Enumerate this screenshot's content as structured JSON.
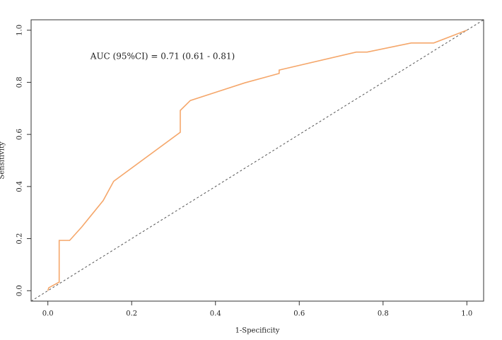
{
  "chart_data": {
    "type": "line",
    "xlabel": "1-Specificity",
    "ylabel": "Sensitivity",
    "annotation": "AUC (95%CI) = 0.71 (0.61 - 0.81)",
    "x": [
      0,
      0.002,
      0.027,
      0.027,
      0.052,
      0.081,
      0.132,
      0.157,
      0.316,
      0.316,
      0.34,
      0.47,
      0.552,
      0.552,
      0.736,
      0.762,
      0.867,
      0.921,
      1
    ],
    "series": [
      {
        "color": "#f5a76b",
        "values": [
          0,
          0.011,
          0.033,
          0.193,
          0.193,
          0.245,
          0.346,
          0.42,
          0.608,
          0.692,
          0.73,
          0.798,
          0.834,
          0.847,
          0.916,
          0.916,
          0.951,
          0.951,
          1
        ]
      }
    ],
    "xlim": [
      -0.04,
      1.04
    ],
    "ylim": [
      -0.04,
      1.04
    ],
    "xticks": [
      {
        "value": 0,
        "label": "0.0"
      },
      0.2,
      0.4,
      0.6,
      0.8,
      {
        "value": 1,
        "label": "1.0"
      }
    ],
    "yticks": [
      {
        "value": 0,
        "label": "0.0"
      },
      0.2,
      0.4,
      0.6,
      0.8,
      {
        "value": 1,
        "label": "1.0"
      }
    ],
    "grid": false
  }
}
